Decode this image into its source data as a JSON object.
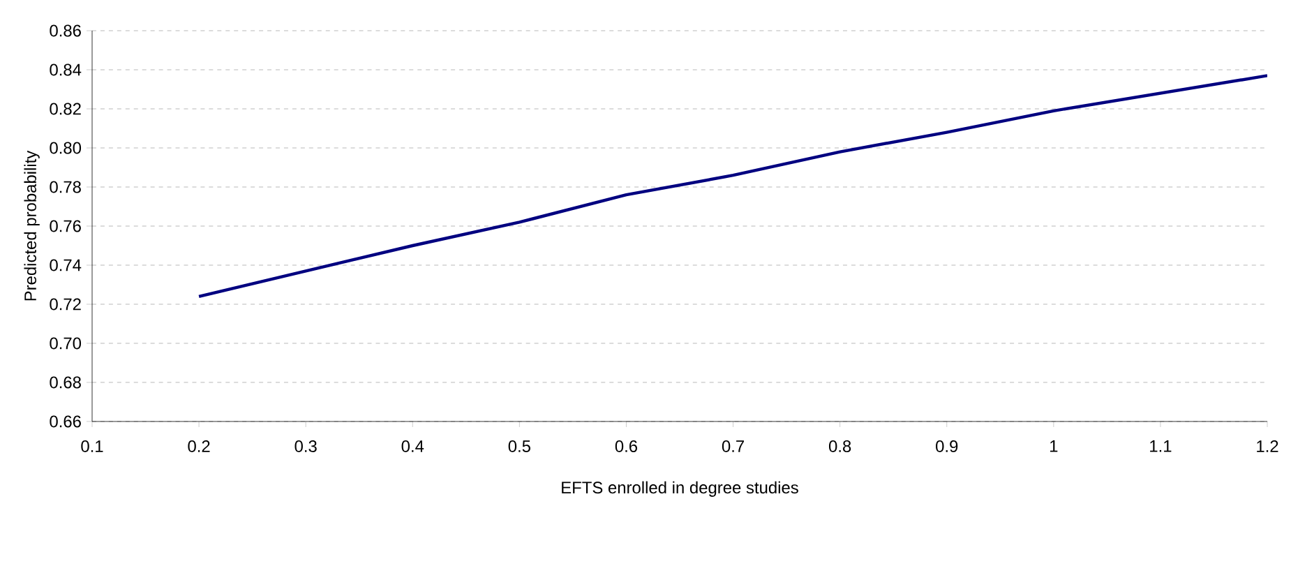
{
  "chart_data": {
    "type": "line",
    "xlabel": "EFTS enrolled in degree studies",
    "ylabel": "Predicted probability",
    "x": [
      0.2,
      0.3,
      0.4,
      0.5,
      0.6,
      0.7,
      0.8,
      0.9,
      1.0,
      1.1,
      1.2
    ],
    "values": [
      0.724,
      0.737,
      0.75,
      0.762,
      0.776,
      0.786,
      0.798,
      0.808,
      0.819,
      0.828,
      0.837
    ],
    "color": "#000080",
    "xlim": [
      0.1,
      1.2
    ],
    "xticks": [
      0.1,
      0.2,
      0.3,
      0.4,
      0.5,
      0.6,
      0.7,
      0.8,
      0.9,
      1,
      1.1,
      1.2
    ],
    "ylim": [
      0.66,
      0.86
    ],
    "yticks": [
      0.66,
      0.68,
      {
        "value": 0.7,
        "label": "0.70"
      },
      0.72,
      0.74,
      0.76,
      0.78,
      {
        "value": 0.8,
        "label": "0.80"
      },
      0.82,
      0.84,
      0.86
    ],
    "grid": "y"
  }
}
